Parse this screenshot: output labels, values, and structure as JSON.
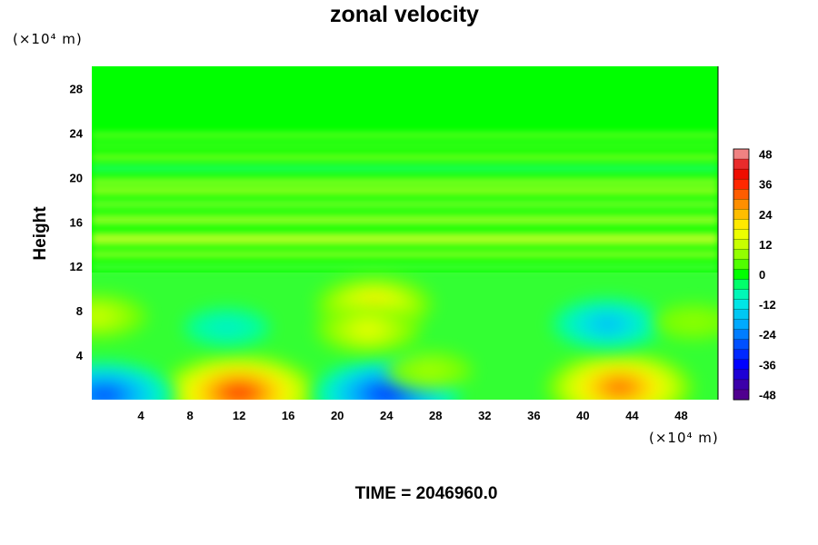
{
  "chart_data": {
    "type": "heatmap",
    "title": "zonal velocity",
    "xlabel": "",
    "ylabel": "Height",
    "x_unit": "(×10⁴ m)",
    "y_unit": "(×10⁴ m)",
    "xlim": [
      0,
      51
    ],
    "ylim": [
      0,
      30
    ],
    "x_ticks": [
      4,
      8,
      12,
      16,
      20,
      24,
      28,
      32,
      36,
      40,
      44,
      48
    ],
    "y_ticks": [
      4,
      8,
      12,
      16,
      20,
      24,
      28
    ],
    "x_tick_labels": [
      "4",
      "8",
      "12",
      "16",
      "20",
      "24",
      "28",
      "32",
      "36",
      "40",
      "44",
      "48"
    ],
    "y_tick_labels": [
      "4",
      "8",
      "12",
      "16",
      "20",
      "24",
      "28"
    ],
    "colorbar": {
      "range": [
        -50,
        50
      ],
      "step": 4,
      "ticks": [
        48,
        36,
        24,
        12,
        0,
        -12,
        -24,
        -36,
        -48
      ],
      "tick_labels": [
        "48",
        "36",
        "24",
        "12",
        "0",
        "-12",
        "-24",
        "-36",
        "-48"
      ]
    },
    "features": [
      {
        "x": 12,
        "y": 0.6,
        "value": 34
      },
      {
        "x": 43,
        "y": 1.1,
        "value": 30
      },
      {
        "x": 1,
        "y": 0.4,
        "value": -28
      },
      {
        "x": 24,
        "y": 0.5,
        "value": -30
      },
      {
        "x": 11,
        "y": 6.5,
        "value": -10
      },
      {
        "x": 42,
        "y": 6.8,
        "value": -18
      },
      {
        "x": 23,
        "y": 8.6,
        "value": 20
      },
      {
        "x": 22.5,
        "y": 6.3,
        "value": 16
      },
      {
        "x": 0.5,
        "y": 7.5,
        "value": 14
      },
      {
        "x": 27.5,
        "y": 2.6,
        "value": 10
      },
      {
        "x": 49,
        "y": 7,
        "value": 8
      }
    ]
  },
  "time_label": "TIME = 2046960.0"
}
